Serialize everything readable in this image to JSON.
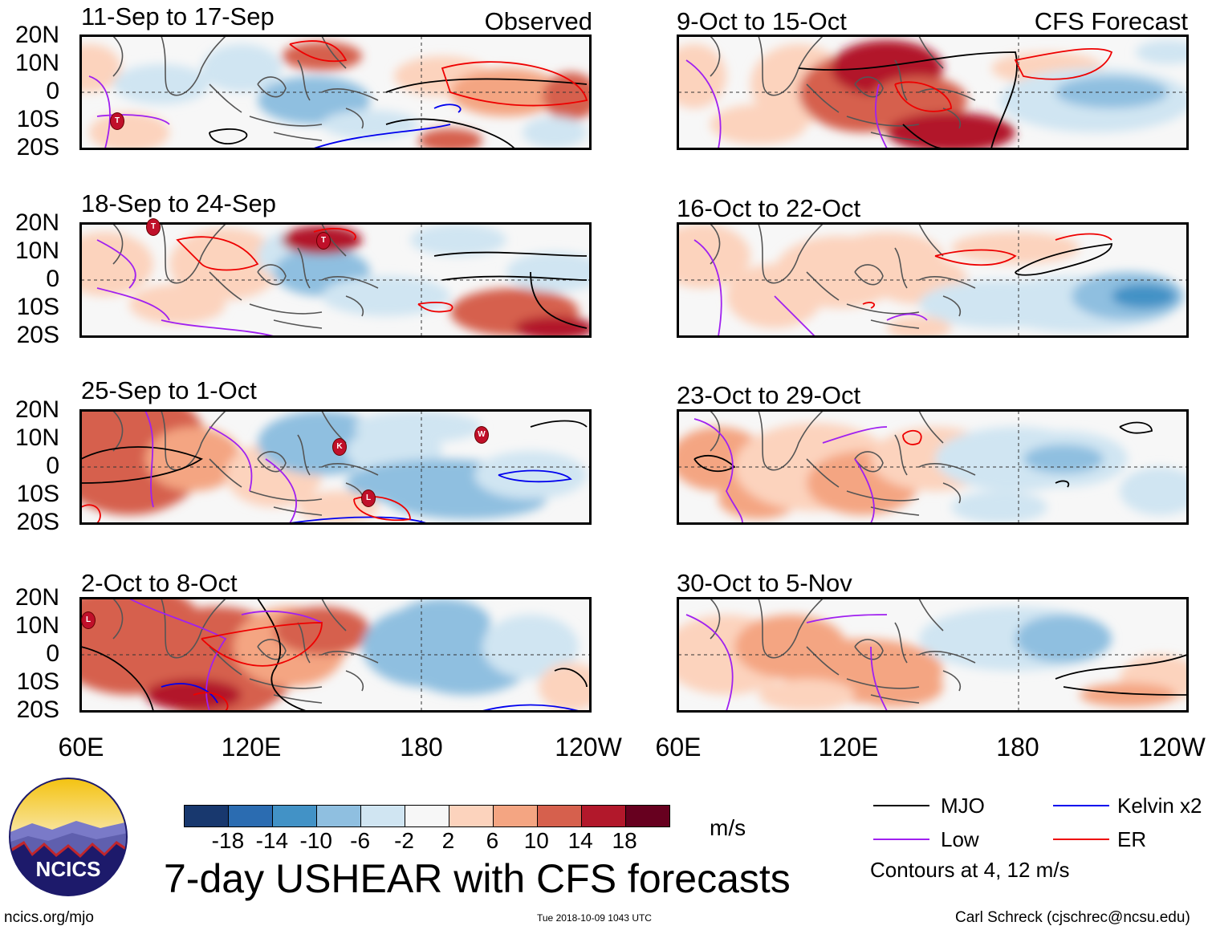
{
  "panels": [
    {
      "id": "p1",
      "title": "11-Sep to 17-Sep",
      "tag": "Observed"
    },
    {
      "id": "p2",
      "title": "18-Sep to 24-Sep",
      "tag": ""
    },
    {
      "id": "p3",
      "title": "25-Sep to 1-Oct",
      "tag": ""
    },
    {
      "id": "p4",
      "title": "2-Oct to 8-Oct",
      "tag": ""
    },
    {
      "id": "p5",
      "title": "9-Oct to 15-Oct",
      "tag": "CFS Forecast"
    },
    {
      "id": "p6",
      "title": "16-Oct to 22-Oct",
      "tag": ""
    },
    {
      "id": "p7",
      "title": "23-Oct to 29-Oct",
      "tag": ""
    },
    {
      "id": "p8",
      "title": "30-Oct to 5-Nov",
      "tag": ""
    }
  ],
  "y_labels": [
    "20N",
    "10N",
    "0",
    "10S",
    "20S"
  ],
  "x_labels": [
    "60E",
    "120E",
    "180",
    "120W"
  ],
  "colorbar": {
    "ticks": [
      "-18",
      "-14",
      "-10",
      "-6",
      "-2",
      "2",
      "6",
      "10",
      "14",
      "18"
    ],
    "units": "m/s",
    "colors": [
      "#18386e",
      "#2b6cb1",
      "#4292c6",
      "#8fbfe0",
      "#d0e5f2",
      "#f7f7f7",
      "#fcd3bd",
      "#f4a582",
      "#d6604d",
      "#b2182b",
      "#67001f"
    ]
  },
  "legend": {
    "items": [
      {
        "label": "MJO",
        "color": "#000000"
      },
      {
        "label": "Kelvin x2",
        "color": "#0000ee"
      },
      {
        "label": "Low",
        "color": "#a020f0"
      },
      {
        "label": "ER",
        "color": "#ee0000"
      }
    ],
    "note": "Contours at 4, 12 m/s"
  },
  "title": "7-day USHEAR with CFS forecasts",
  "logo_text": "NCICS",
  "footer": {
    "url": "ncics.org/mjo",
    "timestamp": "Tue 2018-10-09 1043 UTC",
    "credit": "Carl Schreck (cjschrec@ncsu.edu)"
  },
  "storm_markers": [
    "T",
    "T",
    "K",
    "W",
    "L",
    "L"
  ]
}
